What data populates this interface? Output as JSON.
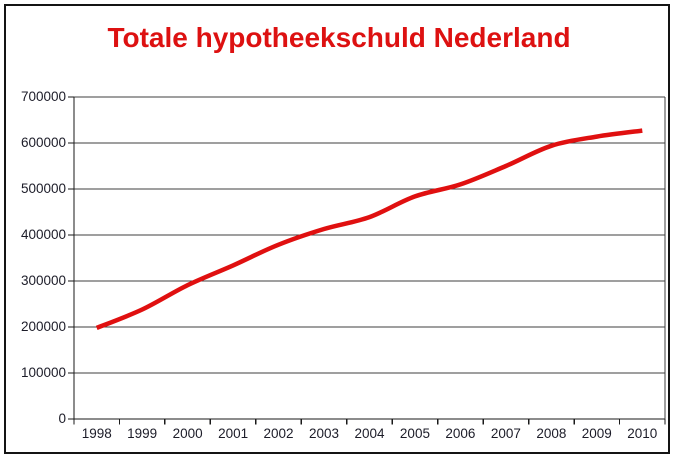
{
  "chart_data": {
    "type": "line",
    "title": "Totale hypotheekschuld Nederland",
    "categories": [
      "1998",
      "1999",
      "2000",
      "2001",
      "2002",
      "2003",
      "2004",
      "2005",
      "2006",
      "2007",
      "2008",
      "2009",
      "2010"
    ],
    "values": [
      198000,
      238000,
      291000,
      334000,
      379000,
      413000,
      439000,
      484000,
      510000,
      550000,
      594000,
      614000,
      627000
    ],
    "xlabel": "",
    "ylabel": "",
    "ylim": [
      0,
      700000
    ],
    "ytick_step": 100000,
    "ytick_labels": [
      "0",
      "100000",
      "200000",
      "300000",
      "400000",
      "500000",
      "600000",
      "700000"
    ],
    "grid": "horizontal",
    "legend": "none",
    "colors": {
      "line": "#e01010",
      "title": "#dd1111",
      "axis_text": "#1c1c28",
      "gridline": "#3f3f3f",
      "axis": "#1a1a1a",
      "frame_border": "#141414",
      "background": "#ffffff"
    }
  }
}
